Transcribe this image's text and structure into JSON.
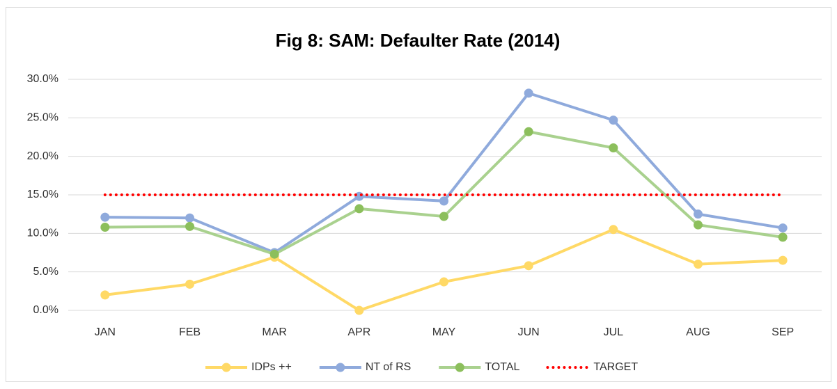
{
  "chart_data": {
    "type": "line",
    "title": "Fig 8: SAM: Defaulter Rate (2014)",
    "categories": [
      "JAN",
      "FEB",
      "MAR",
      "APR",
      "MAY",
      "JUN",
      "JUL",
      "AUG",
      "SEP"
    ],
    "series": [
      {
        "name": "IDPs ++",
        "color": "#ffd966",
        "markers": true,
        "values": [
          2.0,
          3.4,
          6.9,
          0.0,
          3.7,
          5.8,
          10.5,
          6.0,
          6.5
        ]
      },
      {
        "name": "NT of RS",
        "color": "#8faadc",
        "markers": true,
        "values": [
          12.1,
          12.0,
          7.5,
          14.8,
          14.2,
          28.2,
          24.7,
          12.5,
          10.7
        ]
      },
      {
        "name": "TOTAL",
        "color": "#a9d18e",
        "marker_color": "#8cbf5c",
        "markers": true,
        "values": [
          10.8,
          10.9,
          7.3,
          13.2,
          12.2,
          23.2,
          21.1,
          11.1,
          9.5
        ]
      },
      {
        "name": "TARGET",
        "color": "#ff0000",
        "markers": false,
        "dotted": true,
        "values": [
          15,
          15,
          15,
          15,
          15,
          15,
          15,
          15,
          15
        ]
      }
    ],
    "ylim": [
      0,
      30
    ],
    "yticks": [
      {
        "value": 0,
        "label": "0.0%"
      },
      {
        "value": 5,
        "label": "5.0%"
      },
      {
        "value": 10,
        "label": "10.0%"
      },
      {
        "value": 15,
        "label": "15.0%"
      },
      {
        "value": 20,
        "label": "20.0%"
      },
      {
        "value": 25,
        "label": "25.0%"
      },
      {
        "value": 30,
        "label": "30.0%"
      }
    ],
    "grid": true,
    "legend": "bottom"
  }
}
